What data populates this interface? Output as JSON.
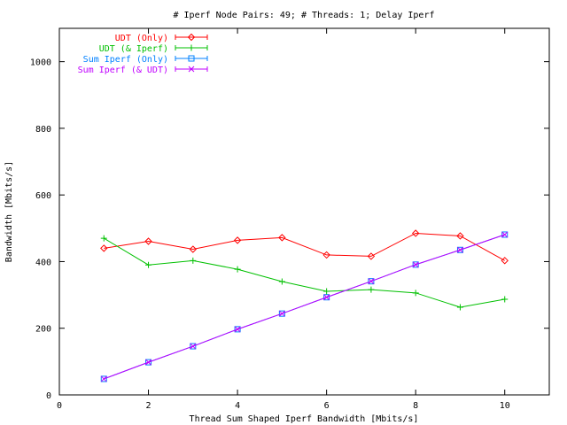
{
  "chart_data": {
    "type": "line",
    "title": "# Iperf Node Pairs: 49; # Threads: 1; Delay Iperf",
    "xlabel": "Thread Sum Shaped Iperf Bandwidth [Mbits/s]",
    "ylabel": "Bandwidth [Mbits/s]",
    "xlim": [
      0,
      11
    ],
    "ylim": [
      0,
      1100
    ],
    "xticks": [
      0,
      2,
      4,
      6,
      8,
      10
    ],
    "yticks": [
      0,
      200,
      400,
      600,
      800,
      1000
    ],
    "grid": false,
    "legend_position": "top-left",
    "x": [
      1,
      2,
      3,
      4,
      5,
      6,
      7,
      8,
      9,
      10
    ],
    "series": [
      {
        "name": "UDT (Only)",
        "color": "#ff0000",
        "marker": "diamond",
        "values": [
          440,
          461,
          437,
          464,
          472,
          420,
          416,
          485,
          477,
          403
        ]
      },
      {
        "name": "UDT (& Iperf)",
        "color": "#00c000",
        "marker": "plus",
        "values": [
          470,
          390,
          403,
          377,
          340,
          311,
          316,
          306,
          263,
          287
        ]
      },
      {
        "name": "Sum Iperf (Only)",
        "color": "#0080ff",
        "marker": "square",
        "values": [
          48,
          98,
          146,
          197,
          244,
          293,
          341,
          391,
          435,
          481
        ]
      },
      {
        "name": "Sum Iperf (& UDT)",
        "color": "#c000ff",
        "marker": "x",
        "values": [
          48,
          98,
          146,
          197,
          244,
          293,
          341,
          391,
          435,
          481
        ]
      }
    ]
  }
}
